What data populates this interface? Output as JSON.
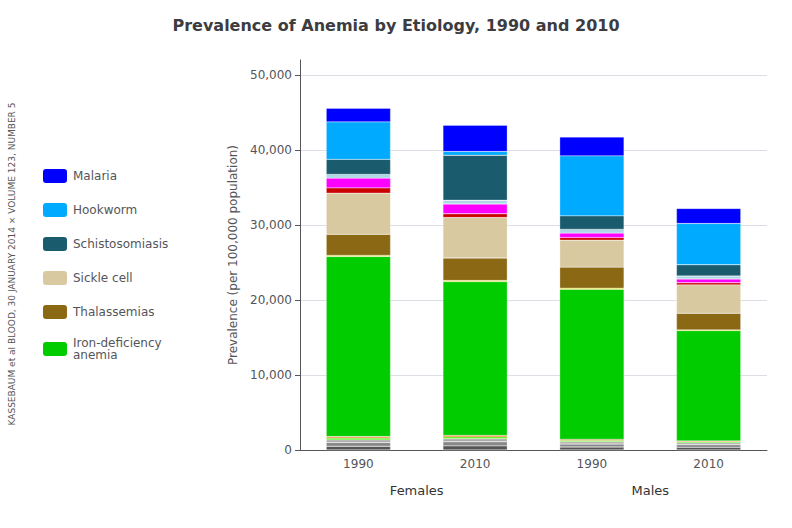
{
  "chart_data": {
    "type": "bar",
    "title": "Prevalence of Anemia by Etiology, 1990 and 2010",
    "ylabel": "Prevalence (per 100,000 population)",
    "categories": [
      "1990",
      "2010",
      "1990",
      "2010"
    ],
    "group_labels": [
      "Females",
      "Males"
    ],
    "annotations": [
      "KASSEBAUM et al BLOOD, 30 JANUARY 2014 × VOLUME 123, NUMBER 5"
    ],
    "ylim": [
      0,
      52000
    ],
    "yticks": [
      0,
      {
        "value": 10000,
        "label": "10,000"
      },
      {
        "value": 20000,
        "label": "20,000"
      },
      {
        "value": 30000,
        "label": "30,000"
      },
      {
        "value": 40000,
        "label": "40,000"
      },
      {
        "value": 50000,
        "label": "50,000"
      }
    ],
    "grid": true,
    "stacked": true,
    "legend": "left",
    "series": [
      {
        "color": "#555555",
        "values": [
          500,
          550,
          400,
          350
        ]
      },
      {
        "color": "#888888",
        "values": [
          500,
          550,
          400,
          350
        ]
      },
      {
        "color": "#aaaaaa",
        "values": [
          350,
          400,
          300,
          250
        ]
      },
      {
        "color": "#44ee00",
        "values": [
          250,
          250,
          180,
          150
        ]
      },
      {
        "color": "#ff6600",
        "values": [
          200,
          200,
          150,
          120
        ]
      },
      {
        "name": "Iron-deficiency\nanemia",
        "color": "#00cc00",
        "values": [
          24000,
          20500,
          20000,
          14700
        ]
      },
      {
        "color": "#dddd00",
        "values": [
          150,
          150,
          150,
          100
        ]
      },
      {
        "name": "Thalassemias",
        "color": "#8B6914",
        "values": [
          2800,
          3000,
          2800,
          2200
        ]
      },
      {
        "name": "Sickle cell",
        "color": "#d9c9a0",
        "values": [
          5500,
          5400,
          3600,
          3800
        ]
      },
      {
        "color": "#cc0000",
        "values": [
          700,
          500,
          350,
          280
        ]
      },
      {
        "color": "#ff00ff",
        "values": [
          1300,
          1300,
          600,
          500
        ]
      },
      {
        "color": "#add8e6",
        "values": [
          500,
          500,
          500,
          400
        ]
      },
      {
        "name": "Schistosomiasis",
        "color": "#1a5c6e",
        "values": [
          2000,
          6000,
          1800,
          1500
        ]
      },
      {
        "name": "Hookworm",
        "color": "#00aaff",
        "values": [
          5000,
          500,
          8000,
          5500
        ]
      },
      {
        "name": "Malaria",
        "color": "#0000ff",
        "values": [
          1800,
          3500,
          2500,
          2000
        ]
      }
    ]
  }
}
